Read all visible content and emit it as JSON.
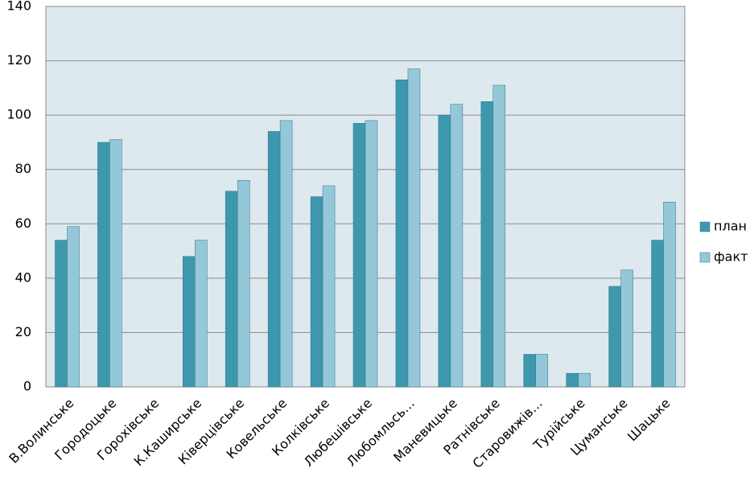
{
  "chart_data": {
    "type": "bar",
    "categories": [
      "В.Волинське",
      "Городоцьке",
      "Горохівське",
      "К.Каширське",
      "Ківерцівське",
      "Ковельське",
      "Колківське",
      "Любешівське",
      "Любомльсь…",
      "Маневицьке",
      "Ратнівське",
      "Старовижів…",
      "Турійське",
      "Цуманське",
      "Шацьке"
    ],
    "series": [
      {
        "name": "план",
        "color": "#3e98ad",
        "values": [
          54,
          90,
          0,
          48,
          72,
          94,
          70,
          97,
          113,
          100,
          105,
          12,
          5,
          37,
          54
        ]
      },
      {
        "name": "факт",
        "color": "#94c8d8",
        "values": [
          59,
          91,
          0,
          54,
          76,
          98,
          74,
          98,
          117,
          104,
          111,
          12,
          5,
          43,
          68
        ]
      }
    ],
    "ylim": [
      0,
      140
    ],
    "yticks": [
      0,
      20,
      40,
      60,
      80,
      100,
      120,
      140
    ],
    "grid": true,
    "legend": "right"
  }
}
